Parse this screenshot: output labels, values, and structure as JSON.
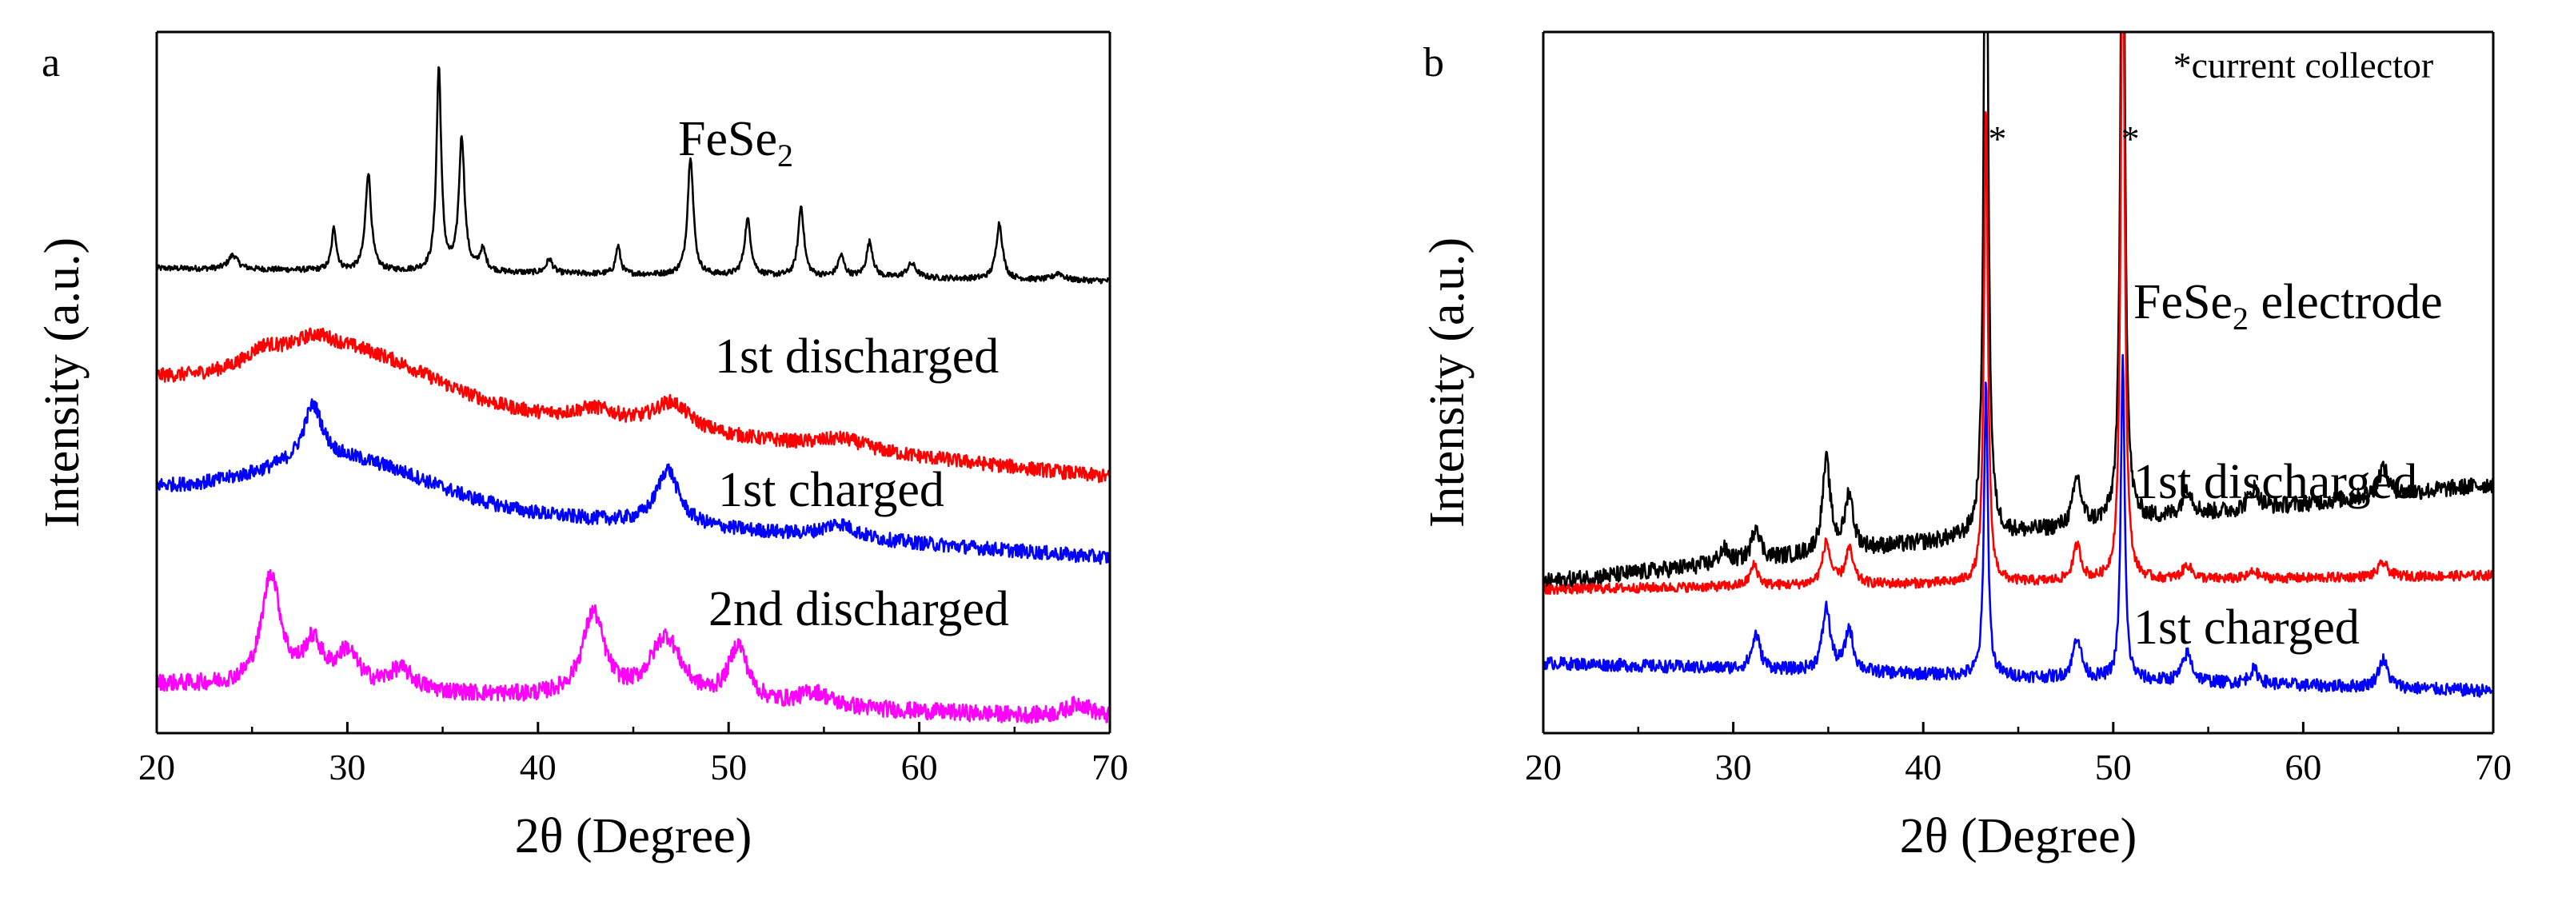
{
  "chart_data": [
    {
      "panel": "a",
      "type": "line",
      "xlabel": "2θ (Degree)",
      "ylabel": "Intensity (a.u.)",
      "xlim": [
        20,
        70
      ],
      "xticks": [
        "20",
        "30",
        "40",
        "50",
        "60",
        "70"
      ],
      "ylim": [
        0,
        1
      ],
      "yticks_shown": false,
      "grid": false,
      "legend": "inline",
      "series": [
        {
          "name": "FeSe2",
          "label_main": "FeSe",
          "label_sub": "2",
          "color": "#000000",
          "baseline": 0.645,
          "slope": 0.018,
          "bump_amp": 0.0,
          "noise": 0.004,
          "peaks": [
            [
              24.0,
              0.02,
              0.3
            ],
            [
              29.3,
              0.06,
              0.15
            ],
            [
              31.1,
              0.14,
              0.18
            ],
            [
              34.8,
              0.29,
              0.15
            ],
            [
              36.0,
              0.19,
              0.18
            ],
            [
              37.1,
              0.03,
              0.2
            ],
            [
              40.6,
              0.02,
              0.2
            ],
            [
              44.2,
              0.04,
              0.15
            ],
            [
              48.0,
              0.17,
              0.18
            ],
            [
              51.0,
              0.08,
              0.2
            ],
            [
              53.8,
              0.1,
              0.18
            ],
            [
              55.9,
              0.03,
              0.2
            ],
            [
              57.4,
              0.05,
              0.2
            ],
            [
              59.6,
              0.02,
              0.3
            ],
            [
              64.2,
              0.08,
              0.2
            ],
            [
              67.3,
              0.01,
              0.3
            ]
          ]
        },
        {
          "name": "1st discharged",
          "label_main": "1st discharged",
          "label_sub": "",
          "color": "#ff0000",
          "baseline": 0.365,
          "slope": 0.14,
          "bump_amp": 0.07,
          "noise": 0.01,
          "peaks": [
            [
              25.6,
              0.02,
              1.0
            ],
            [
              28.3,
              0.02,
              1.2
            ],
            [
              43.0,
              0.02,
              1.5
            ],
            [
              47.0,
              0.04,
              1.2
            ],
            [
              56.0,
              0.015,
              1.5
            ]
          ]
        },
        {
          "name": "1st charged",
          "label_main": "1st charged",
          "label_sub": "",
          "color": "#0000ff",
          "baseline": 0.25,
          "slope": 0.1,
          "bump_amp": 0.06,
          "noise": 0.01,
          "peaks": [
            [
              28.2,
              0.08,
              0.6
            ],
            [
              46.8,
              0.08,
              0.7
            ],
            [
              55.8,
              0.02,
              1.0
            ]
          ]
        },
        {
          "name": "2nd discharged",
          "label_main": "2nd discharged",
          "label_sub": "",
          "color": "#ff00ff",
          "baseline": 0.02,
          "slope": 0.05,
          "bump_amp": 0.0,
          "noise": 0.012,
          "peaks": [
            [
              26.0,
              0.16,
              0.6
            ],
            [
              28.2,
              0.06,
              0.6
            ],
            [
              30.0,
              0.05,
              0.7
            ],
            [
              32.8,
              0.03,
              0.8
            ],
            [
              42.9,
              0.12,
              0.7
            ],
            [
              46.7,
              0.09,
              1.0
            ],
            [
              50.5,
              0.08,
              0.6
            ],
            [
              54.5,
              0.02,
              1.0
            ],
            [
              68.4,
              0.02,
              0.8
            ]
          ]
        }
      ]
    },
    {
      "panel": "b",
      "type": "line",
      "xlabel": "2θ (Degree)",
      "ylabel": "Intensity (a.u.)",
      "xlim": [
        20,
        70
      ],
      "xticks": [
        "20",
        "30",
        "40",
        "50",
        "60",
        "70"
      ],
      "ylim": [
        0,
        1
      ],
      "yticks_shown": false,
      "grid": false,
      "legend": "inline",
      "annotations": [
        {
          "text": "*current collector",
          "x": 60,
          "y": 0.935
        },
        {
          "text": "*",
          "x": 43.9,
          "y": 0.83
        },
        {
          "text": "*",
          "x": 50.9,
          "y": 0.83
        }
      ],
      "series": [
        {
          "name": "FeSe2 electrode",
          "label_main": "FeSe",
          "label_sub": "2",
          "label_tail": " electrode",
          "color": "#000000",
          "baseline": 0.355,
          "slope": -0.14,
          "bump_amp": 0.0,
          "noise": 0.012,
          "peaks": [
            [
              29.5,
              0.02,
              0.3
            ],
            [
              31.2,
              0.05,
              0.25
            ],
            [
              34.9,
              0.13,
              0.25
            ],
            [
              36.1,
              0.08,
              0.25
            ],
            [
              43.3,
              1.2,
              0.12
            ],
            [
              48.1,
              0.07,
              0.25
            ],
            [
              50.5,
              1.2,
              0.12
            ],
            [
              53.9,
              0.04,
              0.3
            ],
            [
              57.4,
              0.03,
              0.3
            ],
            [
              64.2,
              0.04,
              0.3
            ]
          ]
        },
        {
          "name": "1st discharged",
          "label_main": "1st discharged",
          "label_sub": "",
          "color": "#ff0000",
          "baseline": 0.225,
          "slope": -0.02,
          "bump_amp": 0.0,
          "noise": 0.007,
          "peaks": [
            [
              31.1,
              0.03,
              0.25
            ],
            [
              34.9,
              0.06,
              0.25
            ],
            [
              36.1,
              0.05,
              0.25
            ],
            [
              43.3,
              0.68,
              0.12
            ],
            [
              48.1,
              0.05,
              0.25
            ],
            [
              50.5,
              1.0,
              0.12
            ],
            [
              53.9,
              0.02,
              0.3
            ],
            [
              57.4,
              0.01,
              0.3
            ],
            [
              64.2,
              0.02,
              0.3
            ]
          ]
        },
        {
          "name": "1st charged",
          "label_main": "1st charged",
          "label_sub": "",
          "color": "#0000ff",
          "baseline": 0.06,
          "slope": 0.04,
          "bump_amp": 0.0,
          "noise": 0.009,
          "peaks": [
            [
              31.2,
              0.05,
              0.25
            ],
            [
              34.9,
              0.09,
              0.25
            ],
            [
              36.1,
              0.06,
              0.25
            ],
            [
              43.3,
              0.42,
              0.12
            ],
            [
              48.1,
              0.06,
              0.25
            ],
            [
              50.5,
              0.46,
              0.12
            ],
            [
              53.9,
              0.04,
              0.3
            ],
            [
              57.4,
              0.02,
              0.3
            ],
            [
              64.2,
              0.04,
              0.3
            ]
          ]
        }
      ]
    }
  ]
}
